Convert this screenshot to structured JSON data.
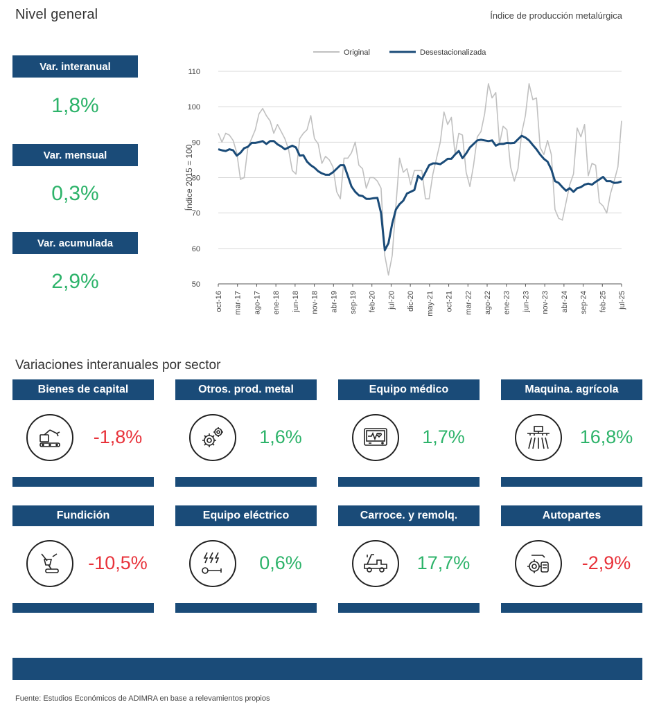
{
  "header": {
    "title": "Nivel general",
    "subtitle": "Índice de producción metalúrgica"
  },
  "kpis": [
    {
      "label": "Var. interanual",
      "value": "1,8%"
    },
    {
      "label": "Var. mensual",
      "value": "0,3%"
    },
    {
      "label": "Var. acumulada",
      "value": "2,9%"
    }
  ],
  "chart_data": {
    "type": "line",
    "title": "",
    "ylabel": "Índice 2015 = 100",
    "xlabel": "",
    "ylim": [
      50,
      110
    ],
    "yticks": [
      50,
      60,
      70,
      80,
      90,
      100,
      110
    ],
    "grid": true,
    "legend_position": "top",
    "x_tick_labels": [
      "oct-16",
      "mar-17",
      "ago-17",
      "ene-18",
      "jun-18",
      "nov-18",
      "abr-19",
      "sep-19",
      "feb-20",
      "jul-20",
      "dic-20",
      "may-21",
      "oct-21",
      "mar-22",
      "ago-22",
      "ene-23",
      "jun-23",
      "nov-23",
      "abr-24",
      "sep-24",
      "feb-25",
      "jul-25"
    ],
    "x_start": "oct-16",
    "x_end": "jul-25",
    "series": [
      {
        "name": "Original",
        "color": "#c0c0c0",
        "values": [
          92.5,
          90,
          92.5,
          92,
          90.5,
          87,
          79.5,
          80,
          88.5,
          91,
          93.5,
          98,
          99.5,
          97.5,
          96,
          92.5,
          95,
          93,
          91,
          88,
          82,
          81,
          91,
          92.5,
          93.5,
          97.5,
          91,
          89.5,
          84,
          86,
          85,
          83,
          76,
          74,
          85.5,
          85.5,
          87,
          90,
          83.5,
          82.5,
          77,
          80,
          80,
          79,
          77,
          58,
          52.5,
          58,
          72,
          85.5,
          81.5,
          82.5,
          78,
          82,
          82,
          82,
          74,
          74,
          81,
          85.5,
          90,
          98.5,
          95,
          97,
          86.5,
          92.5,
          92,
          81.5,
          77.5,
          83.5,
          91.5,
          93,
          98,
          106.5,
          102.5,
          104,
          89.5,
          94.5,
          93.5,
          83,
          79,
          82.5,
          92.5,
          97.5,
          106.5,
          102,
          102.5,
          88.5,
          86.5,
          90.5,
          86.5,
          71,
          68.5,
          68,
          73,
          78,
          81,
          94,
          91.5,
          95,
          80.5,
          84,
          83.5,
          73,
          72,
          70,
          75.5,
          79,
          83,
          96
        ]
      },
      {
        "name": "Desestacionalizada",
        "color": "#1a4b78",
        "values": [
          88,
          87.7,
          87.5,
          88,
          87.7,
          86.2,
          87,
          88.3,
          88.7,
          89.8,
          89.8,
          90,
          90.3,
          89.5,
          90.3,
          90.3,
          89.4,
          88.8,
          88,
          88.5,
          89,
          88.5,
          86.2,
          86.3,
          84.5,
          83.5,
          82.8,
          81.8,
          81.2,
          80.8,
          80.8,
          81.5,
          82.5,
          83.5,
          83.5,
          80.5,
          77.5,
          76,
          75,
          74.8,
          74,
          74,
          74.2,
          74.3,
          70,
          59.5,
          61.5,
          67,
          71,
          72.5,
          73.5,
          75.5,
          76,
          76.5,
          80.5,
          79.5,
          81.5,
          83.5,
          84,
          84,
          83.8,
          84.5,
          85.3,
          85.3,
          86.5,
          87.5,
          85.5,
          86.8,
          88.5,
          89.5,
          90.5,
          90.7,
          90.5,
          90.3,
          90.5,
          89,
          89.5,
          89.5,
          89.8,
          89.7,
          89.8,
          90.8,
          91.8,
          91.3,
          90.5,
          89.2,
          88,
          86.5,
          85.3,
          84.5,
          82.3,
          79,
          78.5,
          77.3,
          76.3,
          77,
          76,
          77,
          77.3,
          78,
          78.3,
          78,
          78.8,
          79.5,
          80.2,
          79,
          79,
          78.5,
          78.6,
          78.9
        ]
      }
    ]
  },
  "sectors_section": {
    "title": "Variaciones interanuales por sector"
  },
  "sectors": [
    {
      "label": "Bienes de capital",
      "value": "-1,8%",
      "trend": "neg",
      "icon": "industrial-robot-icon"
    },
    {
      "label": "Otros. prod. metal",
      "value": "1,6%",
      "trend": "pos",
      "icon": "gears-icon"
    },
    {
      "label": "Equipo médico",
      "value": "1,7%",
      "trend": "pos",
      "icon": "heart-monitor-icon"
    },
    {
      "label": "Maquina. agrícola",
      "value": "16,8%",
      "trend": "pos",
      "icon": "irrigation-icon"
    },
    {
      "label": "Fundición",
      "value": "-10,5%",
      "trend": "neg",
      "icon": "foundry-ladle-icon"
    },
    {
      "label": "Equipo eléctrico",
      "value": "0,6%",
      "trend": "pos",
      "icon": "electric-wrench-icon"
    },
    {
      "label": "Carroce. y remolq.",
      "value": "17,7%",
      "trend": "pos",
      "icon": "tow-truck-icon"
    },
    {
      "label": "Autopartes",
      "value": "-2,9%",
      "trend": "neg",
      "icon": "auto-parts-icon"
    }
  ],
  "colors": {
    "navy": "#1a4b78",
    "positive": "#2db36a",
    "negative": "#e8323a",
    "original_line": "#c0c0c0"
  },
  "footer": {
    "source": "Fuente: Estudios Económicos de ADIMRA en base a relevamientos propios"
  }
}
